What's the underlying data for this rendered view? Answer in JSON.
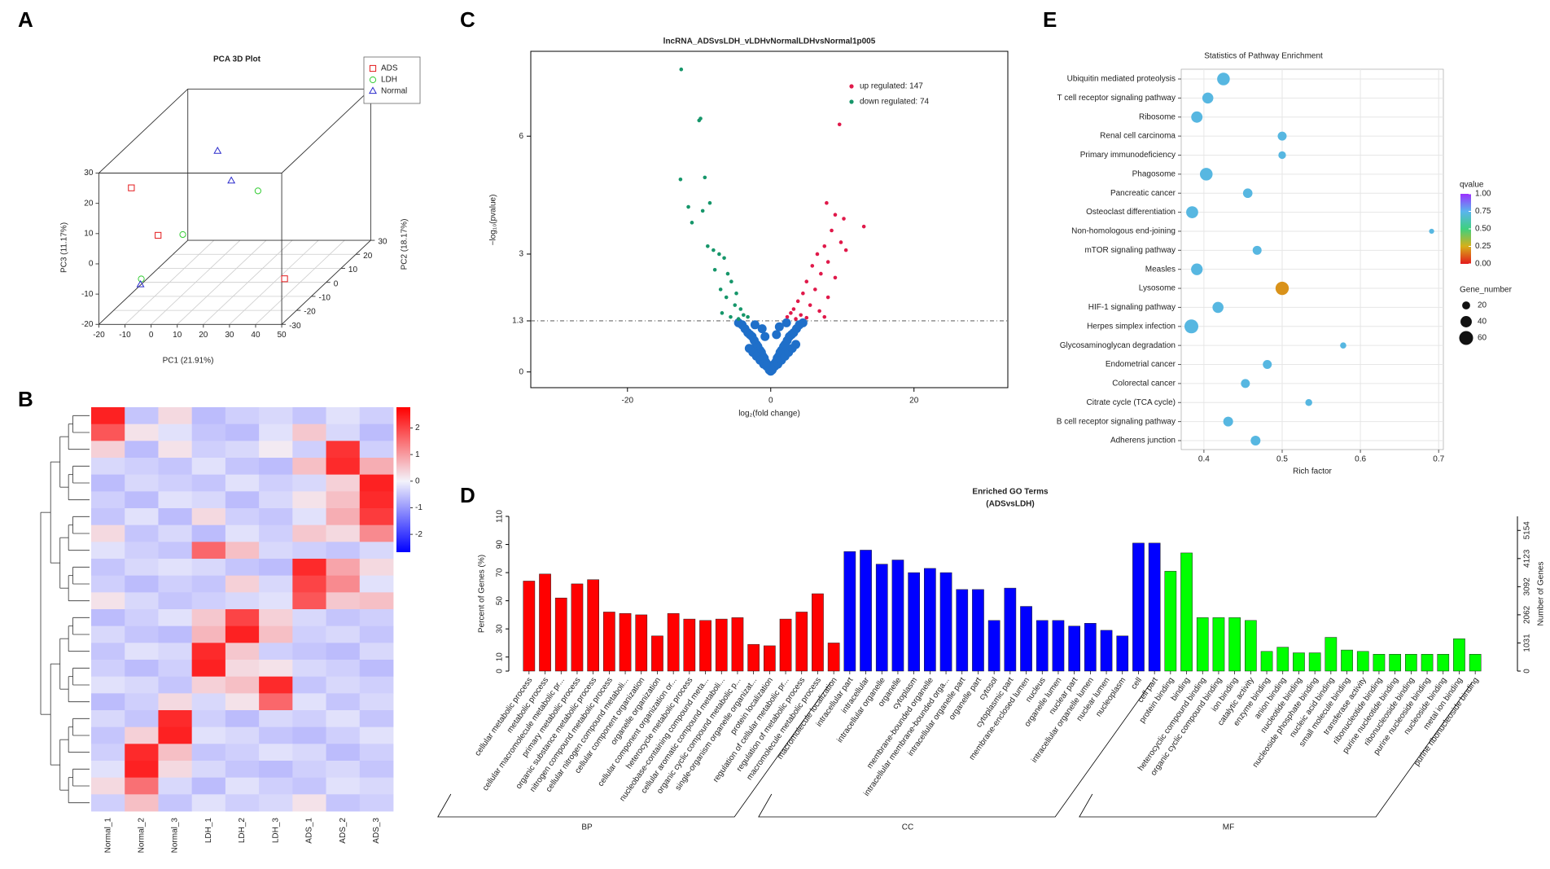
{
  "chart_data": [
    {
      "type": "scatter3d",
      "panel": "A",
      "title": "PCA 3D Plot",
      "xlabel": "PC1 (21.91%)",
      "ylabel": "PC2 (18.17%)",
      "zlabel": "PC3 (11.17%)",
      "xlim": [
        -20,
        50
      ],
      "xticks": [
        -20,
        -10,
        0,
        10,
        20,
        30,
        40,
        50
      ],
      "ylim": [
        -30,
        30
      ],
      "yticks": [
        -30,
        -20,
        -10,
        0,
        10,
        20,
        30
      ],
      "zlim": [
        -20,
        30
      ],
      "zticks": [
        -20,
        -10,
        0,
        10,
        20,
        30
      ],
      "legend": "top-right",
      "grid": true,
      "series": [
        {
          "name": "ADS",
          "color": "#e41a1c",
          "marker": "square",
          "x": [
            -10.4,
            -3,
            36.9
          ],
          "y": [
            -25,
            -20,
            -5
          ],
          "z": [
            22.8,
            4.8,
            -16.5
          ]
        },
        {
          "name": "LDH",
          "color": "#33cc33",
          "marker": "circle",
          "x": [
            18.2,
            -4.9,
            -6.6
          ],
          "y": [
            10,
            0,
            -25
          ],
          "z": [
            5.6,
            -4.2,
            -7.3
          ]
        },
        {
          "name": "Normal",
          "color": "#2b2bcc",
          "marker": "triangle",
          "x": [
            -0.1,
            8,
            -6.9
          ],
          "y": [
            15,
            10,
            -25
          ],
          "z": [
            16.4,
            8.9,
            -9.2
          ]
        }
      ]
    },
    {
      "type": "heatmap",
      "panel": "B",
      "columns": [
        "Normal_1",
        "Normal_2",
        "Normal_3",
        "LDH_1",
        "LDH_2",
        "LDH_3",
        "ADS_1",
        "ADS_2",
        "ADS_3"
      ],
      "zlim": [
        -2.67,
        2.78
      ],
      "zticks": [
        2,
        1,
        0,
        -1,
        -2
      ],
      "colors": {
        "low": "#0000ff",
        "mid": "#f3f3fb",
        "high": "#ff0000"
      },
      "matrix": [
        [
          2.4,
          -0.5,
          0.3,
          -0.6,
          -0.4,
          -0.3,
          -0.5,
          -0.2,
          -0.4
        ],
        [
          1.8,
          0.2,
          -0.2,
          -0.5,
          -0.6,
          -0.2,
          0.5,
          -0.3,
          -0.6
        ],
        [
          0.4,
          -0.6,
          0.2,
          -0.4,
          -0.3,
          0.1,
          -0.4,
          2.2,
          -0.4
        ],
        [
          -0.3,
          -0.4,
          -0.5,
          -0.2,
          -0.5,
          -0.6,
          0.6,
          2.3,
          0.8
        ],
        [
          -0.6,
          -0.3,
          -0.4,
          -0.5,
          -0.2,
          -0.4,
          -0.3,
          0.4,
          2.4
        ],
        [
          -0.4,
          -0.6,
          -0.2,
          -0.3,
          -0.6,
          -0.3,
          0.2,
          0.6,
          2.3
        ],
        [
          -0.5,
          -0.2,
          -0.6,
          0.3,
          -0.4,
          -0.5,
          -0.2,
          0.8,
          2.1
        ],
        [
          0.3,
          -0.5,
          -0.3,
          -0.6,
          -0.2,
          -0.4,
          0.5,
          0.3,
          1.2
        ],
        [
          -0.2,
          -0.4,
          -0.5,
          1.6,
          0.6,
          -0.3,
          -0.4,
          -0.5,
          -0.3
        ],
        [
          -0.5,
          -0.3,
          -0.2,
          -0.3,
          -0.5,
          -0.6,
          2.3,
          0.9,
          0.3
        ],
        [
          -0.4,
          -0.6,
          -0.4,
          -0.5,
          0.4,
          -0.3,
          2.0,
          1.2,
          -0.2
        ],
        [
          0.2,
          -0.3,
          -0.5,
          -0.4,
          -0.3,
          -0.2,
          1.8,
          0.5,
          0.6
        ],
        [
          -0.6,
          -0.4,
          -0.2,
          0.5,
          2.0,
          0.4,
          -0.3,
          -0.5,
          -0.4
        ],
        [
          -0.3,
          -0.5,
          -0.6,
          0.7,
          2.4,
          0.6,
          -0.4,
          -0.3,
          -0.5
        ],
        [
          -0.5,
          -0.2,
          -0.3,
          2.3,
          0.5,
          -0.4,
          -0.5,
          -0.6,
          -0.3
        ],
        [
          -0.4,
          -0.6,
          -0.4,
          2.4,
          0.3,
          0.2,
          -0.3,
          -0.4,
          -0.6
        ],
        [
          -0.2,
          -0.3,
          -0.5,
          0.4,
          0.6,
          2.3,
          -0.5,
          -0.3,
          -0.4
        ],
        [
          -0.6,
          -0.4,
          0.3,
          -0.3,
          0.2,
          1.6,
          -0.2,
          -0.5,
          -0.3
        ],
        [
          -0.3,
          -0.5,
          2.3,
          -0.4,
          -0.6,
          -0.3,
          -0.4,
          -0.2,
          -0.5
        ],
        [
          -0.5,
          0.4,
          2.4,
          -0.2,
          -0.3,
          -0.5,
          -0.6,
          -0.4,
          -0.2
        ],
        [
          -0.4,
          2.3,
          0.6,
          -0.5,
          -0.4,
          -0.2,
          -0.3,
          -0.6,
          -0.4
        ],
        [
          -0.2,
          2.4,
          0.3,
          -0.3,
          -0.5,
          -0.6,
          -0.4,
          -0.3,
          -0.5
        ],
        [
          0.3,
          1.5,
          -0.3,
          -0.6,
          -0.2,
          -0.4,
          -0.5,
          -0.2,
          -0.3
        ],
        [
          -0.4,
          0.6,
          -0.5,
          -0.2,
          -0.4,
          -0.3,
          0.2,
          -0.5,
          -0.4
        ]
      ]
    },
    {
      "type": "scatter",
      "panel": "C",
      "title": "lncRNA_ADSvsLDH_vLDHvNormalLDHvsNormal1p005",
      "xlabel": "log₂(fold change)",
      "ylabel": "−log₁₀(pvalue)",
      "xlim": [
        -33.5,
        33.1
      ],
      "xticks": [
        -20,
        0,
        20
      ],
      "ylim": [
        -0.4,
        8.16
      ],
      "yticks": [
        0,
        1.3,
        3,
        6
      ],
      "threshold": 1.3,
      "legend": "top-right",
      "series": [
        {
          "color": "#1f6fc9",
          "x": [
            -4.5,
            -4,
            -3.6,
            -3.2,
            -2.9,
            -2.6,
            -2.3,
            -2,
            -1.8,
            -1.5,
            -1.3,
            -1.1,
            -0.9,
            -0.7,
            -0.5,
            -0.3,
            -0.15,
            0,
            0.15,
            0.3,
            0.5,
            0.7,
            0.9,
            1.1,
            1.3,
            1.5,
            1.8,
            2,
            2.3,
            2.6,
            2.9,
            3.2,
            3.6,
            4,
            4.5,
            -3,
            -2.5,
            -2,
            -1.5,
            -1,
            -0.6,
            -0.2,
            0.2,
            0.6,
            1,
            1.5,
            2,
            2.5,
            3,
            3.5,
            -1.2,
            1.2,
            -2.2,
            2.2,
            -0.8,
            0.8
          ],
          "values": [
            1.25,
            1.2,
            1.1,
            1.0,
            0.95,
            0.9,
            0.8,
            0.7,
            0.65,
            0.55,
            0.5,
            0.4,
            0.35,
            0.25,
            0.2,
            0.1,
            0.05,
            0.02,
            0.05,
            0.1,
            0.2,
            0.25,
            0.35,
            0.4,
            0.5,
            0.55,
            0.65,
            0.7,
            0.8,
            0.9,
            0.95,
            1.0,
            1.1,
            1.2,
            1.25,
            0.6,
            0.5,
            0.4,
            0.3,
            0.2,
            0.15,
            0.05,
            0.05,
            0.15,
            0.2,
            0.3,
            0.4,
            0.5,
            0.6,
            0.7,
            1.1,
            1.15,
            1.2,
            1.25,
            0.9,
            0.95
          ]
        },
        {
          "name": "up regulated: 147",
          "color": "#e0194a",
          "x": [
            9.6,
            13,
            7.8,
            9,
            10.2,
            8.5,
            9.8,
            10.5,
            7.5,
            6.5,
            8,
            5.8,
            7,
            9,
            5,
            6.2,
            4.5,
            8,
            3.8,
            5.5,
            3.2,
            6.8,
            2.8,
            4.2,
            2.3,
            7.5,
            3.5,
            5
          ],
          "values": [
            6.3,
            3.7,
            4.3,
            4.0,
            3.9,
            3.6,
            3.3,
            3.1,
            3.2,
            3.0,
            2.8,
            2.7,
            2.5,
            2.4,
            2.3,
            2.1,
            2.0,
            1.9,
            1.8,
            1.7,
            1.6,
            1.55,
            1.5,
            1.45,
            1.4,
            1.4,
            1.35,
            1.38
          ]
        },
        {
          "name": "down regulated: 74",
          "color": "#16966a",
          "x": [
            -12.5,
            -10,
            -9.8,
            -12.6,
            -9.2,
            -9.5,
            -11.5,
            -8.5,
            -11,
            -8.8,
            -8,
            -7.2,
            -6.5,
            -7.8,
            -6,
            -5.5,
            -7,
            -4.8,
            -6.2,
            -5,
            -4.2,
            -6.8,
            -3.8,
            -5.6,
            -4.5,
            -3.2
          ],
          "values": [
            7.7,
            6.4,
            6.45,
            4.9,
            4.95,
            4.1,
            4.2,
            4.3,
            3.8,
            3.2,
            3.1,
            3.0,
            2.9,
            2.6,
            2.5,
            2.3,
            2.1,
            2.0,
            1.9,
            1.7,
            1.6,
            1.5,
            1.45,
            1.4,
            1.35,
            1.4
          ]
        }
      ]
    },
    {
      "type": "bar",
      "panel": "D",
      "title": "Enriched GO Terms",
      "subtitle": "(ADSvsLDH)",
      "ylabel": "Percent of Genes (%)",
      "y2label": "Number of Genes",
      "ylim": [
        0,
        110
      ],
      "yticks": [
        0,
        10,
        30,
        50,
        70,
        90,
        110
      ],
      "y2lim": [
        0,
        5669
      ],
      "y2ticks": [
        0,
        1031,
        2062,
        3092,
        4123,
        5154
      ],
      "groups": [
        {
          "name": "BP",
          "color": "#ff0000",
          "categories": [
            "cellular metabolic process",
            "metabolic process",
            "cellular macromolecule metabolic pr...",
            "primary metabolic process",
            "organic substance metabolic process",
            "nitrogen compound metabolic process",
            "cellular nitrogen compound metaboli...",
            "cellular component organization",
            "organelle organization",
            "cellular component organization or...",
            "heterocycle metabolic process",
            "nucleobase-containing compound meta...",
            "cellular aromatic compound metaboli...",
            "organic cyclic compound metabolic p...",
            "single-organism organelle organizat...",
            "protein localization",
            "regulation of cellular metabolic pr...",
            "regulation of metabolic process",
            "macromolecule metabolic process",
            "macromolecule localization"
          ],
          "values": [
            64,
            69,
            52,
            62,
            65,
            42,
            41,
            40,
            25,
            41,
            37,
            36,
            37,
            38,
            19,
            18,
            37,
            42,
            55,
            20
          ]
        },
        {
          "name": "CC",
          "color": "#0000ff",
          "categories": [
            "intracellular part",
            "intracellular",
            "intracellular organelle",
            "organelle",
            "cytoplasm",
            "membrane-bounded organelle",
            "intracellular membrane-bounded orga...",
            "intracellular organelle part",
            "organelle part",
            "cytosol",
            "cytoplasmic part",
            "membrane-enclosed lumen",
            "nucleus",
            "organelle lumen",
            "nuclear part",
            "intracellular organelle lumen",
            "nuclear lumen",
            "nucleoplasm",
            "cell",
            "cell part"
          ],
          "values": [
            85,
            86,
            76,
            79,
            70,
            73,
            70,
            58,
            58,
            36,
            59,
            46,
            36,
            36,
            32,
            34,
            29,
            25,
            91,
            91
          ]
        },
        {
          "name": "MF",
          "color": "#00ff00",
          "categories": [
            "protein binding",
            "binding",
            "heterocyclic compound binding",
            "organic cyclic compound binding",
            "ion binding",
            "catalytic activity",
            "enzyme binding",
            "anion binding",
            "nucleotide binding",
            "nucleoside phosphate binding",
            "nucleic acid binding",
            "small molecule binding",
            "transferase activity",
            "ribonucleotide binding",
            "purine nucleotide binding",
            "ribonucleoside binding",
            "purine nucleoside binding",
            "nucleoside binding",
            "metal ion binding",
            "purine ribonucleoside binding"
          ],
          "values": [
            71,
            84,
            38,
            38,
            38,
            36,
            14,
            17,
            13,
            13,
            24,
            15,
            14,
            12,
            12,
            12,
            12,
            12,
            23,
            12
          ]
        }
      ]
    },
    {
      "type": "bubble",
      "panel": "E",
      "title": "Statistics of Pathway Enrichment",
      "xlabel": "Rich factor",
      "xlim": [
        0.371,
        0.706
      ],
      "xticks": [
        0.4,
        0.5,
        0.6,
        0.7
      ],
      "grid": true,
      "legend": "right",
      "categories": [
        "Ubiquitin mediated proteolysis",
        "T cell receptor signaling pathway",
        "Ribosome",
        "Renal cell carcinoma",
        "Primary immunodeficiency",
        "Phagosome",
        "Pancreatic cancer",
        "Osteoclast differentiation",
        "Non-homologous end-joining",
        "mTOR signaling pathway",
        "Measles",
        "Lysosome",
        "HIF-1 signaling pathway",
        "Herpes simplex infection",
        "Glycosaminoglycan degradation",
        "Endometrial cancer",
        "Colorectal cancer",
        "Citrate cycle (TCA cycle)",
        "B cell receptor signaling pathway",
        "Adherens junction"
      ],
      "x": [
        0.425,
        0.405,
        0.391,
        0.5,
        0.5,
        0.403,
        0.456,
        0.385,
        0.691,
        0.468,
        0.391,
        0.5,
        0.418,
        0.384,
        0.578,
        0.481,
        0.453,
        0.534,
        0.431,
        0.466
      ],
      "sizes": [
        50,
        38,
        40,
        25,
        18,
        50,
        28,
        45,
        8,
        25,
        42,
        55,
        38,
        60,
        12,
        25,
        25,
        15,
        30,
        30
      ],
      "qvalues": [
        0.72,
        0.72,
        0.72,
        0.72,
        0.72,
        0.72,
        0.72,
        0.72,
        0.72,
        0.72,
        0.72,
        0.2,
        0.72,
        0.72,
        0.72,
        0.72,
        0.72,
        0.72,
        0.72,
        0.72
      ],
      "color_title": "qvalue",
      "clim": [
        0,
        1
      ],
      "cticks": [
        {
          "value": 1,
          "label": "1.00"
        },
        {
          "value": 0.75,
          "label": "0.75"
        },
        {
          "value": 0.5,
          "label": "0.50"
        },
        {
          "value": 0.25,
          "label": "0.25"
        },
        {
          "value": 0,
          "label": "0.00"
        }
      ],
      "colorscale": [
        [
          0,
          "#e41a1c"
        ],
        [
          0.25,
          "#d6b019"
        ],
        [
          0.5,
          "#3fd07f"
        ],
        [
          0.75,
          "#5ab4ee"
        ],
        [
          1,
          "#9b30ff"
        ]
      ],
      "size_title": "Gene_number",
      "size_ticks": [
        20,
        40,
        60
      ]
    }
  ]
}
